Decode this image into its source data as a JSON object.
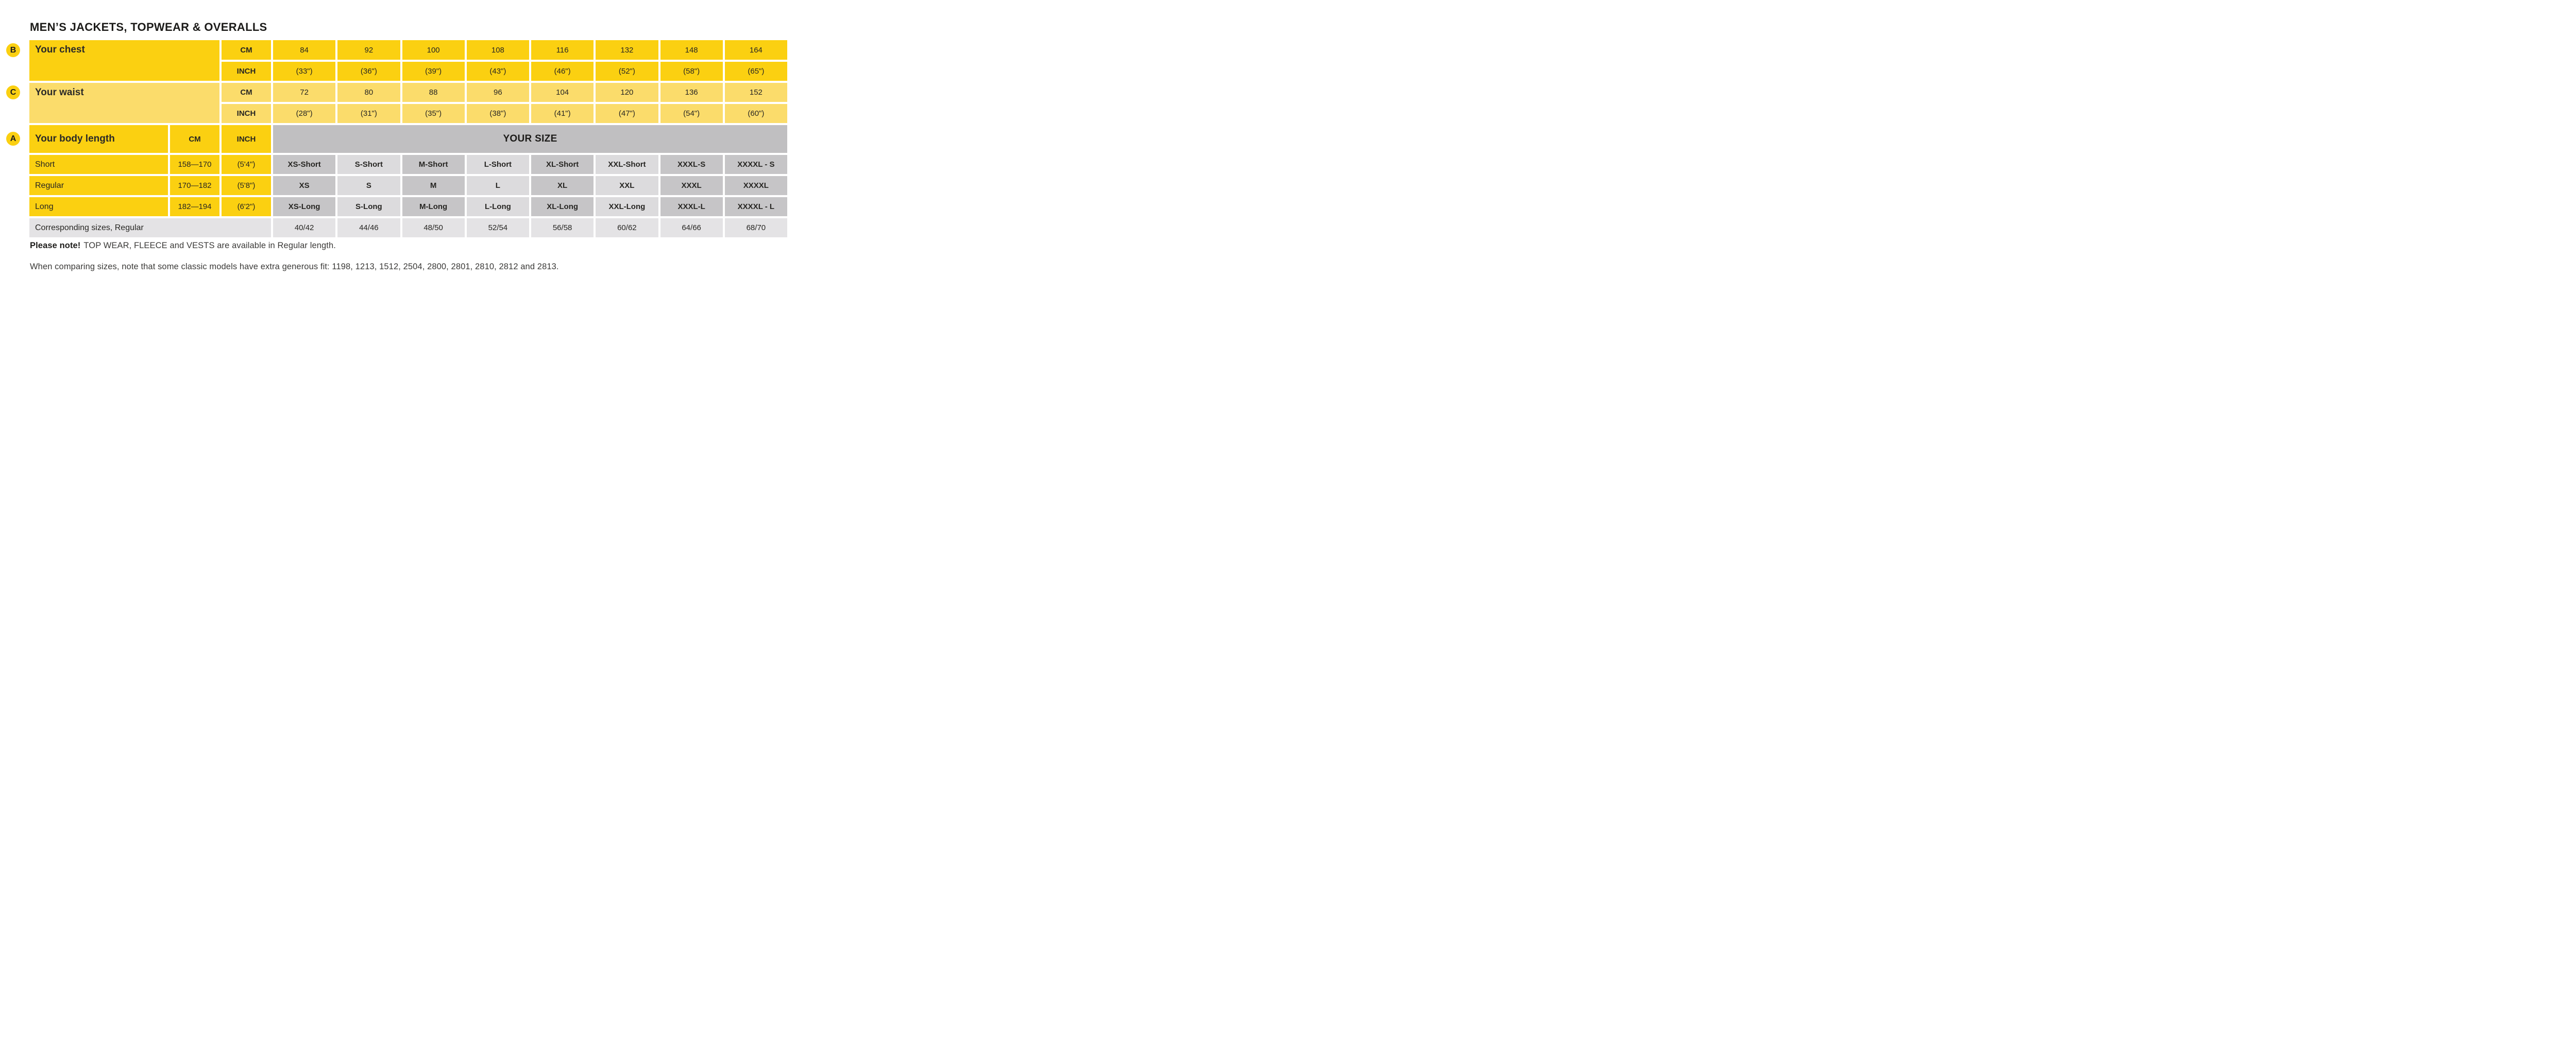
{
  "title": "MEN’S JACKETS, TOPWEAR & OVERALLS",
  "colors": {
    "yellow": "#FBD011",
    "light_yellow": "#FBDC6B",
    "your_size_gray": "#C0BFC1",
    "col_dark_gray": "#C6C5C7",
    "col_light_gray": "#DCDBDD",
    "row_light_gray": "#E4E3E5"
  },
  "chest": {
    "badge": "B",
    "label": "Your chest",
    "cm_label": "CM",
    "inch_label": "INCH",
    "cm": [
      "84",
      "92",
      "100",
      "108",
      "116",
      "132",
      "148",
      "164"
    ],
    "inch": [
      "(33\")",
      "(36\")",
      "(39\")",
      "(43\")",
      "(46\")",
      "(52\")",
      "(58\")",
      "(65\")"
    ]
  },
  "waist": {
    "badge": "C",
    "label": "Your waist",
    "cm_label": "CM",
    "inch_label": "INCH",
    "cm": [
      "72",
      "80",
      "88",
      "96",
      "104",
      "120",
      "136",
      "152"
    ],
    "inch": [
      "(28\")",
      "(31\")",
      "(35\")",
      "(38\")",
      "(41\")",
      "(47\")",
      "(54\")",
      "(60\")"
    ]
  },
  "body_length": {
    "badge": "A",
    "label": "Your body length",
    "cm_label": "CM",
    "inch_label": "INCH",
    "your_size_label": "YOUR SIZE",
    "rows": [
      {
        "label": "Short",
        "cm": "158—170",
        "inch": "(5'4\")",
        "sizes": [
          "XS-Short",
          "S-Short",
          "M-Short",
          "L-Short",
          "XL-Short",
          "XXL-Short",
          "XXXL-S",
          "XXXXL - S"
        ]
      },
      {
        "label": "Regular",
        "cm": "170—182",
        "inch": "(5'8\")",
        "sizes": [
          "XS",
          "S",
          "M",
          "L",
          "XL",
          "XXL",
          "XXXL",
          "XXXXL"
        ]
      },
      {
        "label": "Long",
        "cm": "182—194",
        "inch": "(6'2\")",
        "sizes": [
          "XS-Long",
          "S-Long",
          "M-Long",
          "L-Long",
          "XL-Long",
          "XXL-Long",
          "XXXL-L",
          "XXXXL - L"
        ]
      }
    ],
    "corresponding": {
      "label": "Corresponding sizes, Regular",
      "values": [
        "40/42",
        "44/46",
        "48/50",
        "52/54",
        "56/58",
        "60/62",
        "64/66",
        "68/70"
      ]
    }
  },
  "notes": {
    "note1_bold": "Please note!",
    "note1_rest": "TOP WEAR, FLEECE and VESTS are available in Regular length.",
    "note2": "When comparing sizes, note that some classic models have extra generous fit: 1198, 1213, 1512, 2504, 2800, 2801, 2810, 2812 and 2813."
  }
}
